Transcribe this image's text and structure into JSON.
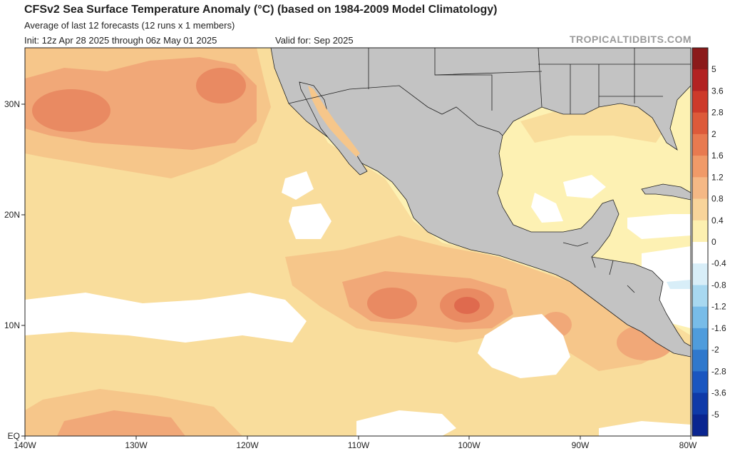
{
  "header": {
    "title": "CFSv2 Sea Surface Temperature Anomaly (°C) (based on 1984-2009 Model Climatology)",
    "subtitle": "Average of last 12 forecasts (12 runs x 1 members)",
    "init": "Init: 12z Apr 28 2025 through 06z May 01 2025",
    "valid": "Valid for: Sep 2025",
    "brand": "TROPICALTIDBITS.COM"
  },
  "axes": {
    "x_labels": [
      "140W",
      "130W",
      "120W",
      "110W",
      "100W",
      "90W",
      "80W"
    ],
    "y_labels": [
      "EQ",
      "10N",
      "20N",
      "30N"
    ]
  },
  "colorbar": {
    "labels": [
      "5",
      "3.6",
      "2.8",
      "2",
      "1.2",
      "0.8",
      "0.4",
      "0",
      "-0.4",
      "-0.8",
      "-1.2",
      "-1.6",
      "-2",
      "-2.8",
      "-3.6",
      "-5"
    ],
    "minor_labels": [
      "3.6",
      "1.6",
      "-1.6"
    ],
    "all_labels": [
      "5",
      "3.6",
      "2.8",
      "2",
      "1.6",
      "1.2",
      "0.8",
      "0.4",
      "0",
      "-0.4",
      "-0.8",
      "-1.2",
      "-1.6",
      "-2",
      "-2.8",
      "-3.6",
      "-5"
    ],
    "colors": [
      "#8b1a1a",
      "#b22222",
      "#cd3a2a",
      "#dd5a3a",
      "#e87a50",
      "#f09a68",
      "#f5b885",
      "#f8d49a",
      "#fdf0b0",
      "#ffffff",
      "#d8eef8",
      "#a8d8f0",
      "#78bce8",
      "#4f9cdc",
      "#2f78cc",
      "#1a56c0",
      "#0f3aa8",
      "#0a2590"
    ]
  },
  "colors": {
    "land": "#c3c3c3",
    "ocean_zero": "#ffffff",
    "anom_04": "#fdf1b3",
    "anom_08": "#f9dd9c",
    "anom_12": "#f6c68a",
    "anom_16": "#f1a878",
    "anom_20": "#e98a62",
    "anom_28": "#df6a4e"
  }
}
